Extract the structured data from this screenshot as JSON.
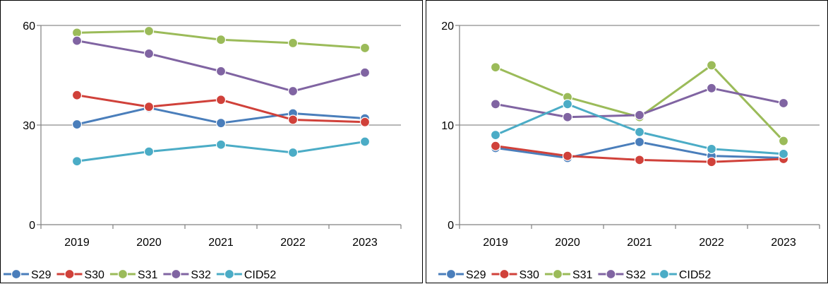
{
  "chart_data": [
    {
      "type": "line",
      "x": [
        "2019",
        "2020",
        "2021",
        "2022",
        "2023"
      ],
      "ylim": [
        0,
        60
      ],
      "yticks": [
        0,
        30,
        60
      ],
      "grid": "horizontal at 30",
      "legend_position": "bottom",
      "series": [
        {
          "name": "S29",
          "color": "#4a7ebb",
          "values": [
            30.2,
            35.2,
            30.6,
            33.5,
            32.0
          ]
        },
        {
          "name": "S30",
          "color": "#d0413a",
          "values": [
            39.0,
            35.5,
            37.6,
            31.6,
            30.9
          ]
        },
        {
          "name": "S31",
          "color": "#9bbb59",
          "values": [
            57.8,
            58.3,
            55.7,
            54.7,
            53.2
          ]
        },
        {
          "name": "S32",
          "color": "#8064a2",
          "values": [
            55.4,
            51.5,
            46.2,
            40.2,
            45.8
          ]
        },
        {
          "name": "CID52",
          "color": "#4bacc6",
          "values": [
            19.1,
            22.0,
            24.1,
            21.7,
            25.0
          ]
        }
      ]
    },
    {
      "type": "line",
      "x": [
        "2019",
        "2020",
        "2021",
        "2022",
        "2023"
      ],
      "ylim": [
        0,
        20
      ],
      "yticks": [
        0,
        10,
        20
      ],
      "grid": "horizontal at 10",
      "legend_position": "bottom",
      "series": [
        {
          "name": "S29",
          "color": "#4a7ebb",
          "values": [
            7.7,
            6.7,
            8.3,
            6.9,
            6.7
          ]
        },
        {
          "name": "S30",
          "color": "#d0413a",
          "values": [
            7.9,
            6.9,
            6.5,
            6.3,
            6.6
          ]
        },
        {
          "name": "S31",
          "color": "#9bbb59",
          "values": [
            15.8,
            12.8,
            10.8,
            16.0,
            8.4
          ]
        },
        {
          "name": "S32",
          "color": "#8064a2",
          "values": [
            12.1,
            10.8,
            11.0,
            13.7,
            12.2
          ]
        },
        {
          "name": "CID52",
          "color": "#4bacc6",
          "values": [
            9.0,
            12.1,
            9.3,
            7.6,
            7.1
          ]
        }
      ]
    }
  ]
}
